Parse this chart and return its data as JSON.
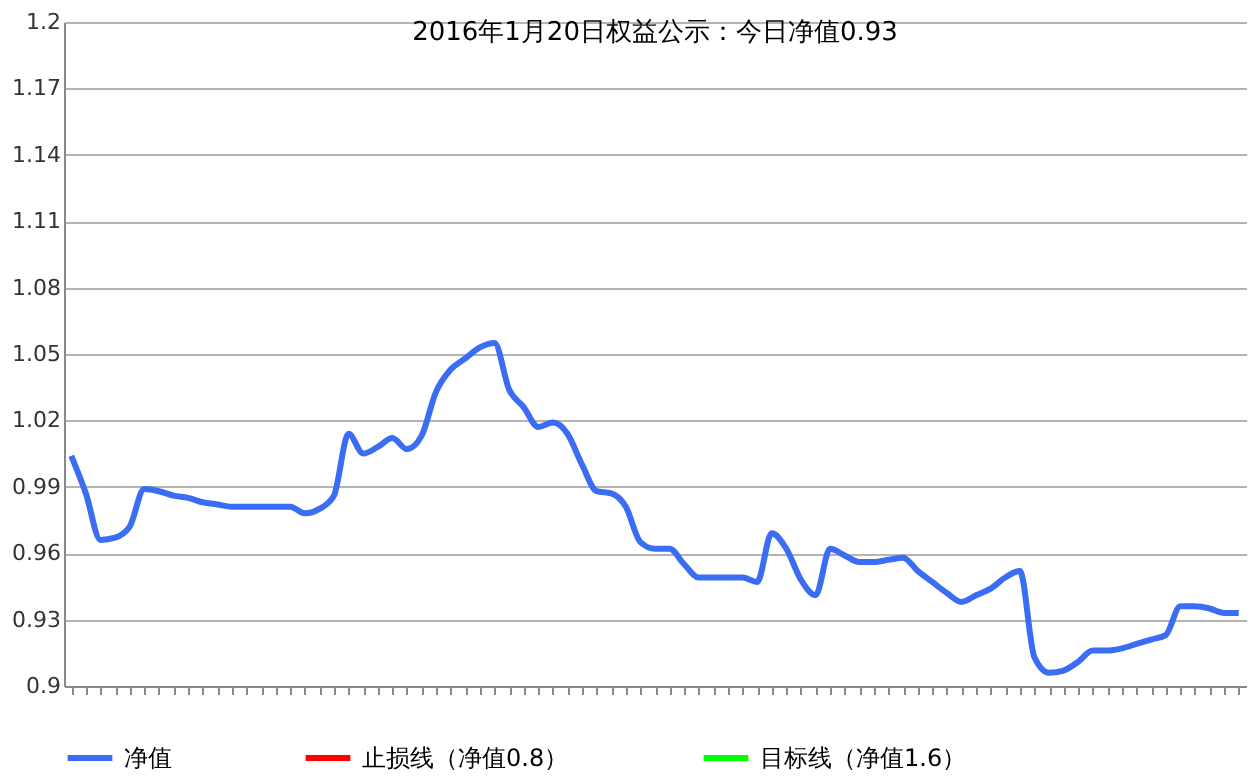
{
  "chart_data": {
    "type": "line",
    "title": "2016年1月20日权益公示：今日净值0.93",
    "categories": [
      null,
      null,
      null,
      null,
      null,
      null,
      null,
      null,
      null,
      null,
      null,
      null,
      null,
      null,
      null,
      null,
      null,
      null,
      null,
      null,
      null,
      null,
      null,
      null,
      null,
      null,
      null,
      null,
      null,
      null,
      null,
      null,
      null,
      null,
      null,
      null,
      null,
      null,
      null,
      null,
      null,
      null,
      null,
      null,
      null,
      null,
      null,
      null,
      null,
      null,
      null,
      null,
      null,
      null,
      null,
      null,
      null,
      null,
      null,
      null,
      null,
      null,
      null,
      null,
      null,
      null,
      null,
      null,
      null,
      null,
      null,
      null,
      null,
      null,
      null,
      null,
      null,
      null,
      null,
      null,
      null
    ],
    "series": [
      {
        "name": "净值",
        "color": "#3a6cf4",
        "values": [
          1.004,
          0.987,
          0.966,
          0.967,
          0.972,
          0.989,
          0.988,
          0.986,
          0.985,
          0.983,
          0.982,
          0.981,
          0.981,
          0.981,
          0.981,
          0.981,
          0.978,
          0.98,
          0.986,
          1.014,
          1.005,
          1.008,
          1.012,
          1.007,
          1.013,
          1.033,
          1.043,
          1.048,
          1.053,
          1.055,
          1.034,
          1.026,
          1.017,
          1.019,
          1.014,
          1.0,
          0.988,
          0.987,
          0.981,
          0.965,
          0.962,
          0.962,
          0.955,
          0.949,
          0.949,
          0.949,
          0.949,
          0.947,
          0.969,
          0.962,
          0.948,
          0.941,
          0.962,
          0.959,
          0.956,
          0.956,
          0.957,
          0.958,
          0.952,
          0.947,
          0.942,
          0.938,
          0.941,
          0.944,
          0.949,
          0.952,
          0.913,
          0.906,
          0.907,
          0.911,
          0.916,
          0.916,
          0.917,
          0.919,
          0.921,
          0.923,
          0.936,
          0.936,
          0.935,
          0.933,
          0.933
        ]
      },
      {
        "name": "止损线（净值0.8）",
        "color": "#ff0000",
        "values": [
          null,
          null,
          null,
          null,
          null,
          null,
          null,
          null,
          null,
          null,
          null,
          null,
          null,
          null,
          null,
          null,
          null,
          null,
          null,
          null,
          null,
          null,
          null,
          null,
          null,
          null,
          null,
          null,
          null,
          null,
          null,
          null,
          null,
          null,
          null,
          null,
          null,
          null,
          null,
          null,
          null,
          null,
          null,
          null,
          null,
          null,
          null,
          null,
          null,
          null,
          null,
          null,
          null,
          null,
          null,
          null,
          null,
          null,
          null,
          null,
          null,
          null,
          null,
          null,
          null,
          null,
          null,
          null,
          null,
          null,
          null,
          null,
          null,
          null,
          null,
          null,
          null,
          null,
          null,
          null,
          null
        ]
      },
      {
        "name": "目标线（净值1.6）",
        "color": "#00ff00",
        "values": [
          null,
          null,
          null,
          null,
          null,
          null,
          null,
          null,
          null,
          null,
          null,
          null,
          null,
          null,
          null,
          null,
          null,
          null,
          null,
          null,
          null,
          null,
          null,
          null,
          null,
          null,
          null,
          null,
          null,
          null,
          null,
          null,
          null,
          null,
          null,
          null,
          null,
          null,
          null,
          null,
          null,
          null,
          null,
          null,
          null,
          null,
          null,
          null,
          null,
          null,
          null,
          null,
          null,
          null,
          null,
          null,
          null,
          null,
          null,
          null,
          null,
          null,
          null,
          null,
          null,
          null,
          null,
          null,
          null,
          null,
          null,
          null,
          null,
          null,
          null,
          null,
          null,
          null,
          null,
          null,
          null
        ]
      }
    ],
    "ylim": [
      0.9,
      1.2
    ],
    "yticks": [
      0.9,
      0.93,
      0.96,
      0.99,
      1.02,
      1.05,
      1.08,
      1.11,
      1.14,
      1.17,
      1.2
    ],
    "grid": "y",
    "legend": "bottom",
    "tick_labels": "y",
    "marker": "none",
    "line_style": "solid"
  }
}
